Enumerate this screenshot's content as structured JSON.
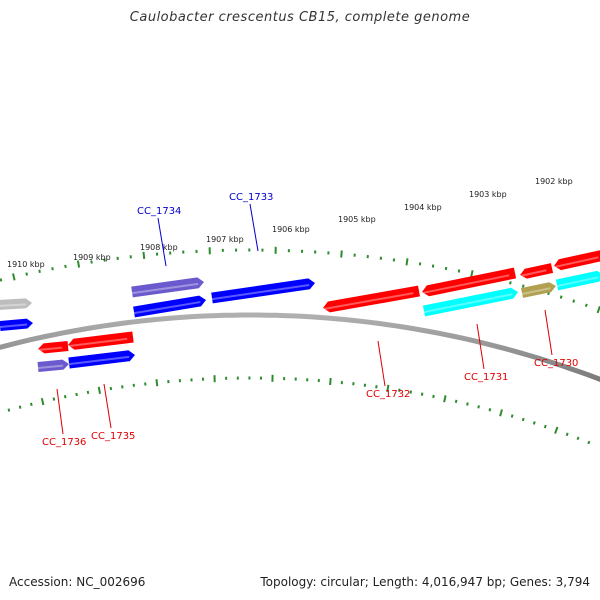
{
  "title": "Caulobacter crescentus CB15, complete genome",
  "footer": {
    "accession": "Accession: NC_002696",
    "summary": "Topology: circular; Length: 4,016,947 bp; Genes: 3,794"
  },
  "colors": {
    "backbone": "#7a7a7a",
    "tick": "#2e8b2e",
    "red_gene": "#ff0000",
    "blue_gene": "#0000ff",
    "purple_gene": "#6a5acd",
    "cyan_gene": "#00ffff",
    "olive_gene": "#b0a050",
    "gray_gene": "#bdbdbd",
    "label_red": "#dd0000",
    "label_blue": "#0000cc"
  },
  "scale_labels": [
    "1910 kbp",
    "1909 kbp",
    "1908 kbp",
    "1907 kbp",
    "1906 kbp",
    "1905 kbp",
    "1904 kbp",
    "1903 kbp",
    "1902 kbp"
  ],
  "gene_labels": [
    {
      "id": "CC_1736",
      "color": "red"
    },
    {
      "id": "CC_1735",
      "color": "red"
    },
    {
      "id": "CC_1734",
      "color": "blue"
    },
    {
      "id": "CC_1733",
      "color": "blue"
    },
    {
      "id": "CC_1732",
      "color": "red"
    },
    {
      "id": "CC_1731",
      "color": "red"
    },
    {
      "id": "CC_1730",
      "color": "red"
    }
  ]
}
